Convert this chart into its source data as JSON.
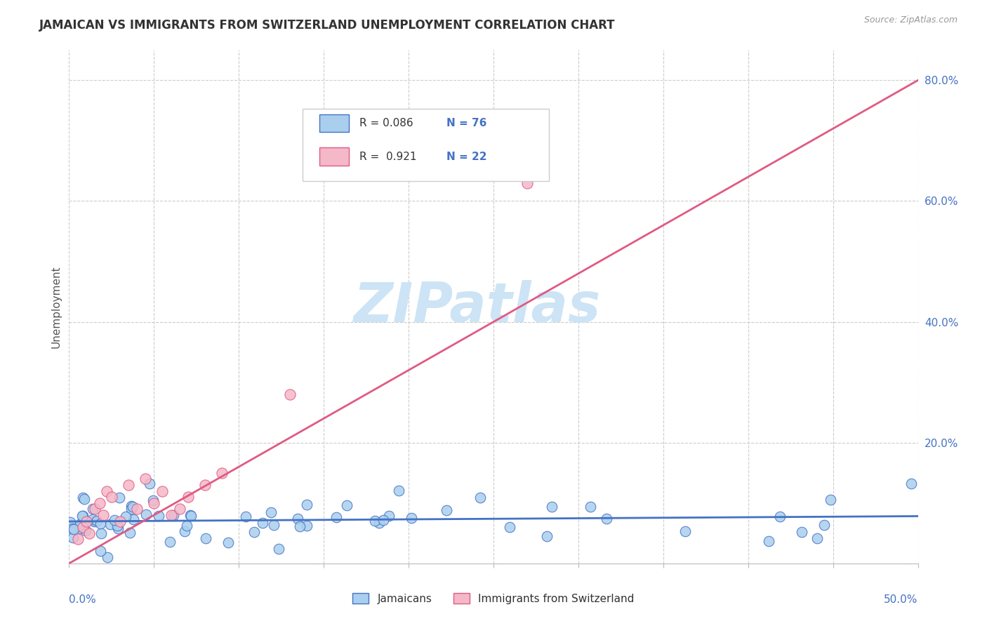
{
  "title": "JAMAICAN VS IMMIGRANTS FROM SWITZERLAND UNEMPLOYMENT CORRELATION CHART",
  "source": "Source: ZipAtlas.com",
  "ylabel": "Unemployment",
  "xlim": [
    0.0,
    0.5
  ],
  "ylim": [
    0.0,
    0.85
  ],
  "ytick_positions": [
    0.0,
    0.2,
    0.4,
    0.6,
    0.8
  ],
  "ytick_labels": [
    "",
    "20.0%",
    "40.0%",
    "60.0%",
    "80.0%"
  ],
  "r1": 0.086,
  "n1": 76,
  "r2": 0.921,
  "n2": 22,
  "series1_color": "#aacfee",
  "series2_color": "#f5b8c8",
  "line1_color": "#4472c4",
  "line2_color": "#e05a82",
  "watermark_color": "#cce4f5",
  "background_color": "#ffffff"
}
